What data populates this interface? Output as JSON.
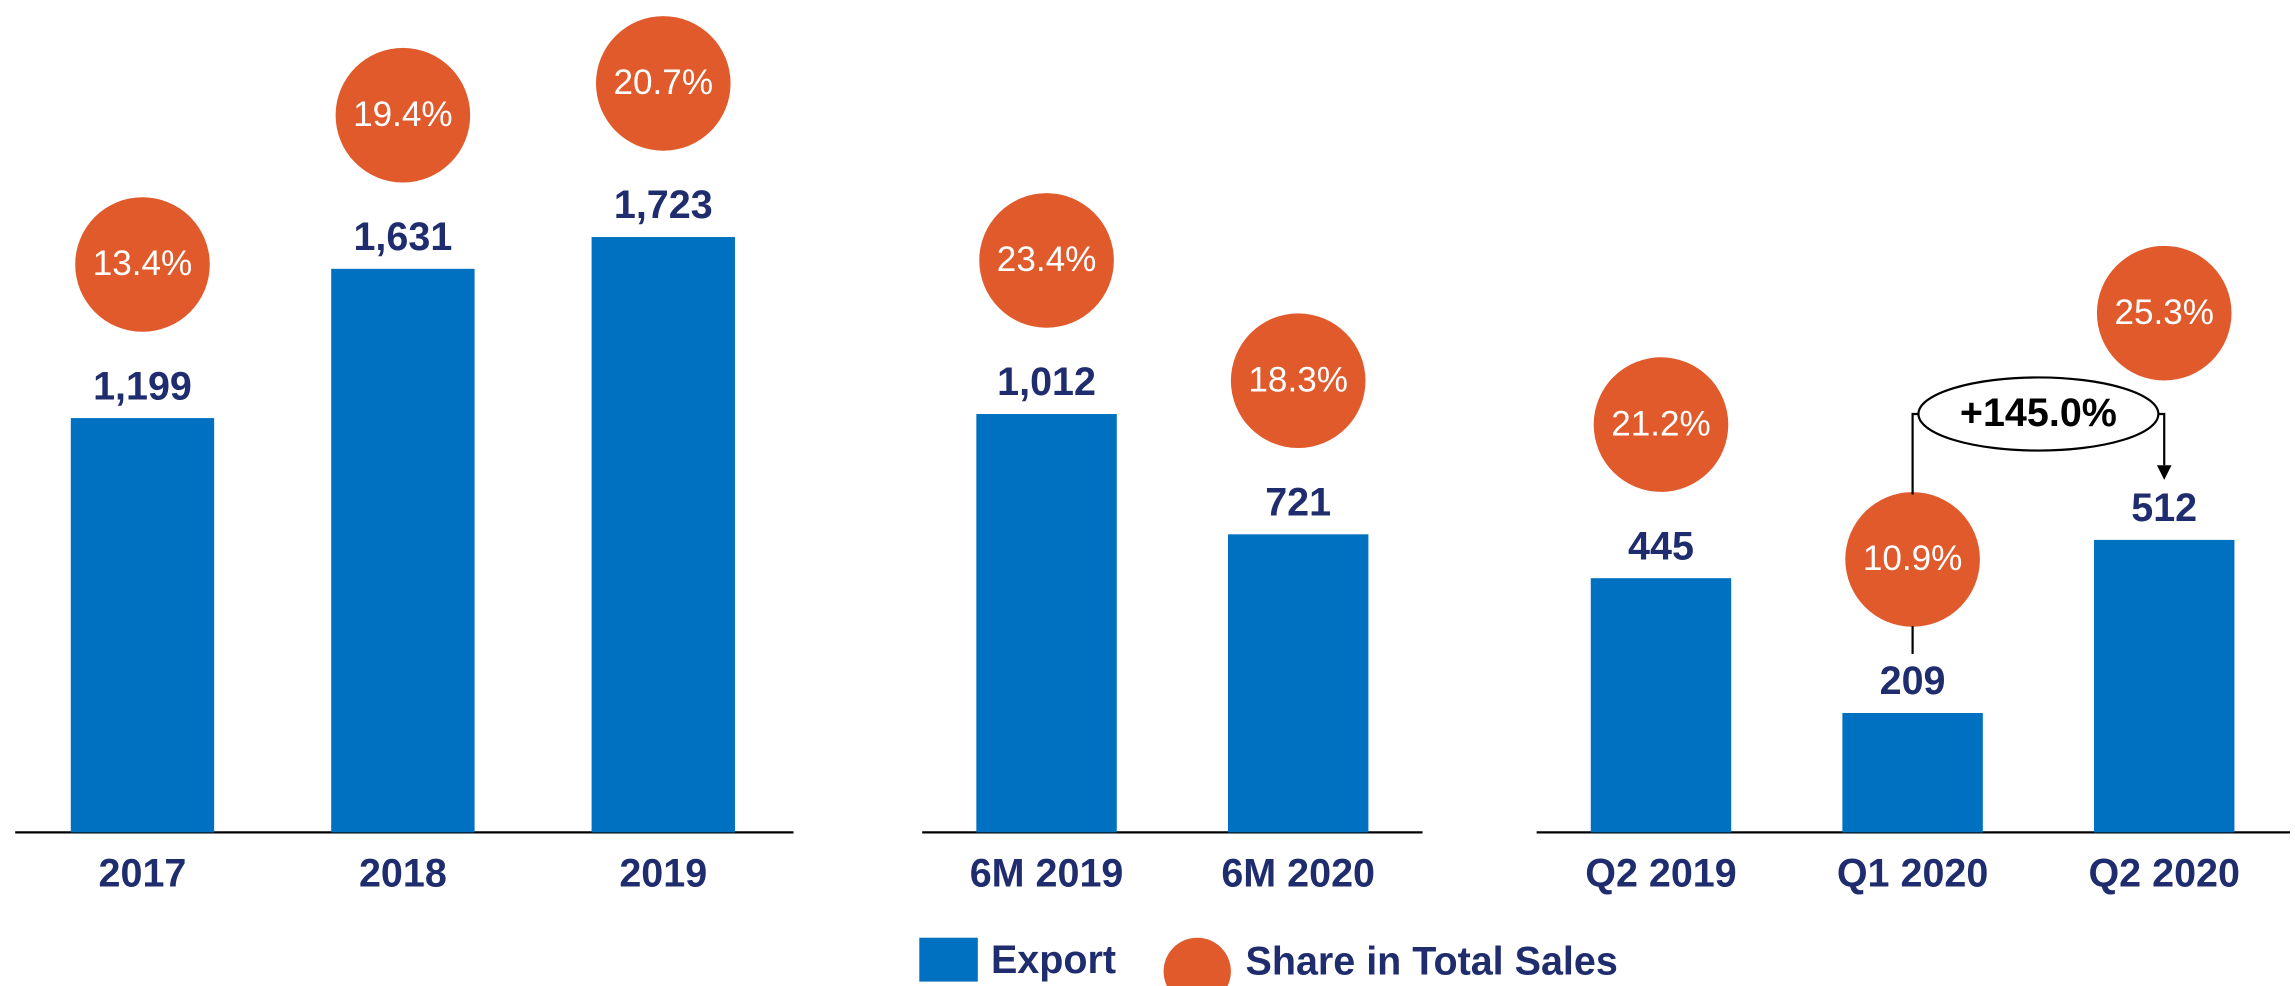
{
  "chart_data": [
    {
      "type": "bar",
      "categories": [
        "2017",
        "2018",
        "2019"
      ],
      "series": [
        {
          "name": "Export",
          "type": "bar",
          "color": "#0070c0",
          "values": [
            1199,
            1631,
            1723
          ],
          "value_labels": [
            "1,199",
            "1,631",
            "1,723"
          ]
        },
        {
          "name": "Share in Total Sales",
          "type": "circle",
          "color": "#e05a2b",
          "values": [
            13.4,
            19.4,
            20.7
          ],
          "value_labels": [
            "13.4%",
            "19.4%",
            "20.7%"
          ]
        }
      ]
    },
    {
      "type": "bar",
      "categories": [
        "6M 2019",
        "6M 2020"
      ],
      "series": [
        {
          "name": "Export",
          "type": "bar",
          "color": "#0070c0",
          "values": [
            1012,
            721
          ],
          "value_labels": [
            "1,012",
            "721"
          ]
        },
        {
          "name": "Share in Total Sales",
          "type": "circle",
          "color": "#e05a2b",
          "values": [
            23.4,
            18.3
          ],
          "value_labels": [
            "23.4%",
            "18.3%"
          ]
        }
      ]
    },
    {
      "type": "bar",
      "categories": [
        "Q2 2019",
        "Q1 2020",
        "Q2 2020"
      ],
      "series": [
        {
          "name": "Export",
          "type": "bar",
          "color": "#0070c0",
          "values": [
            445,
            209,
            512
          ],
          "value_labels": [
            "445",
            "209",
            "512"
          ]
        },
        {
          "name": "Share in Total Sales",
          "type": "circle",
          "color": "#e05a2b",
          "values": [
            21.2,
            10.9,
            25.3
          ],
          "value_labels": [
            "21.2%",
            "10.9%",
            "25.3%"
          ]
        }
      ],
      "annotation": "+145.0%"
    }
  ]
}
